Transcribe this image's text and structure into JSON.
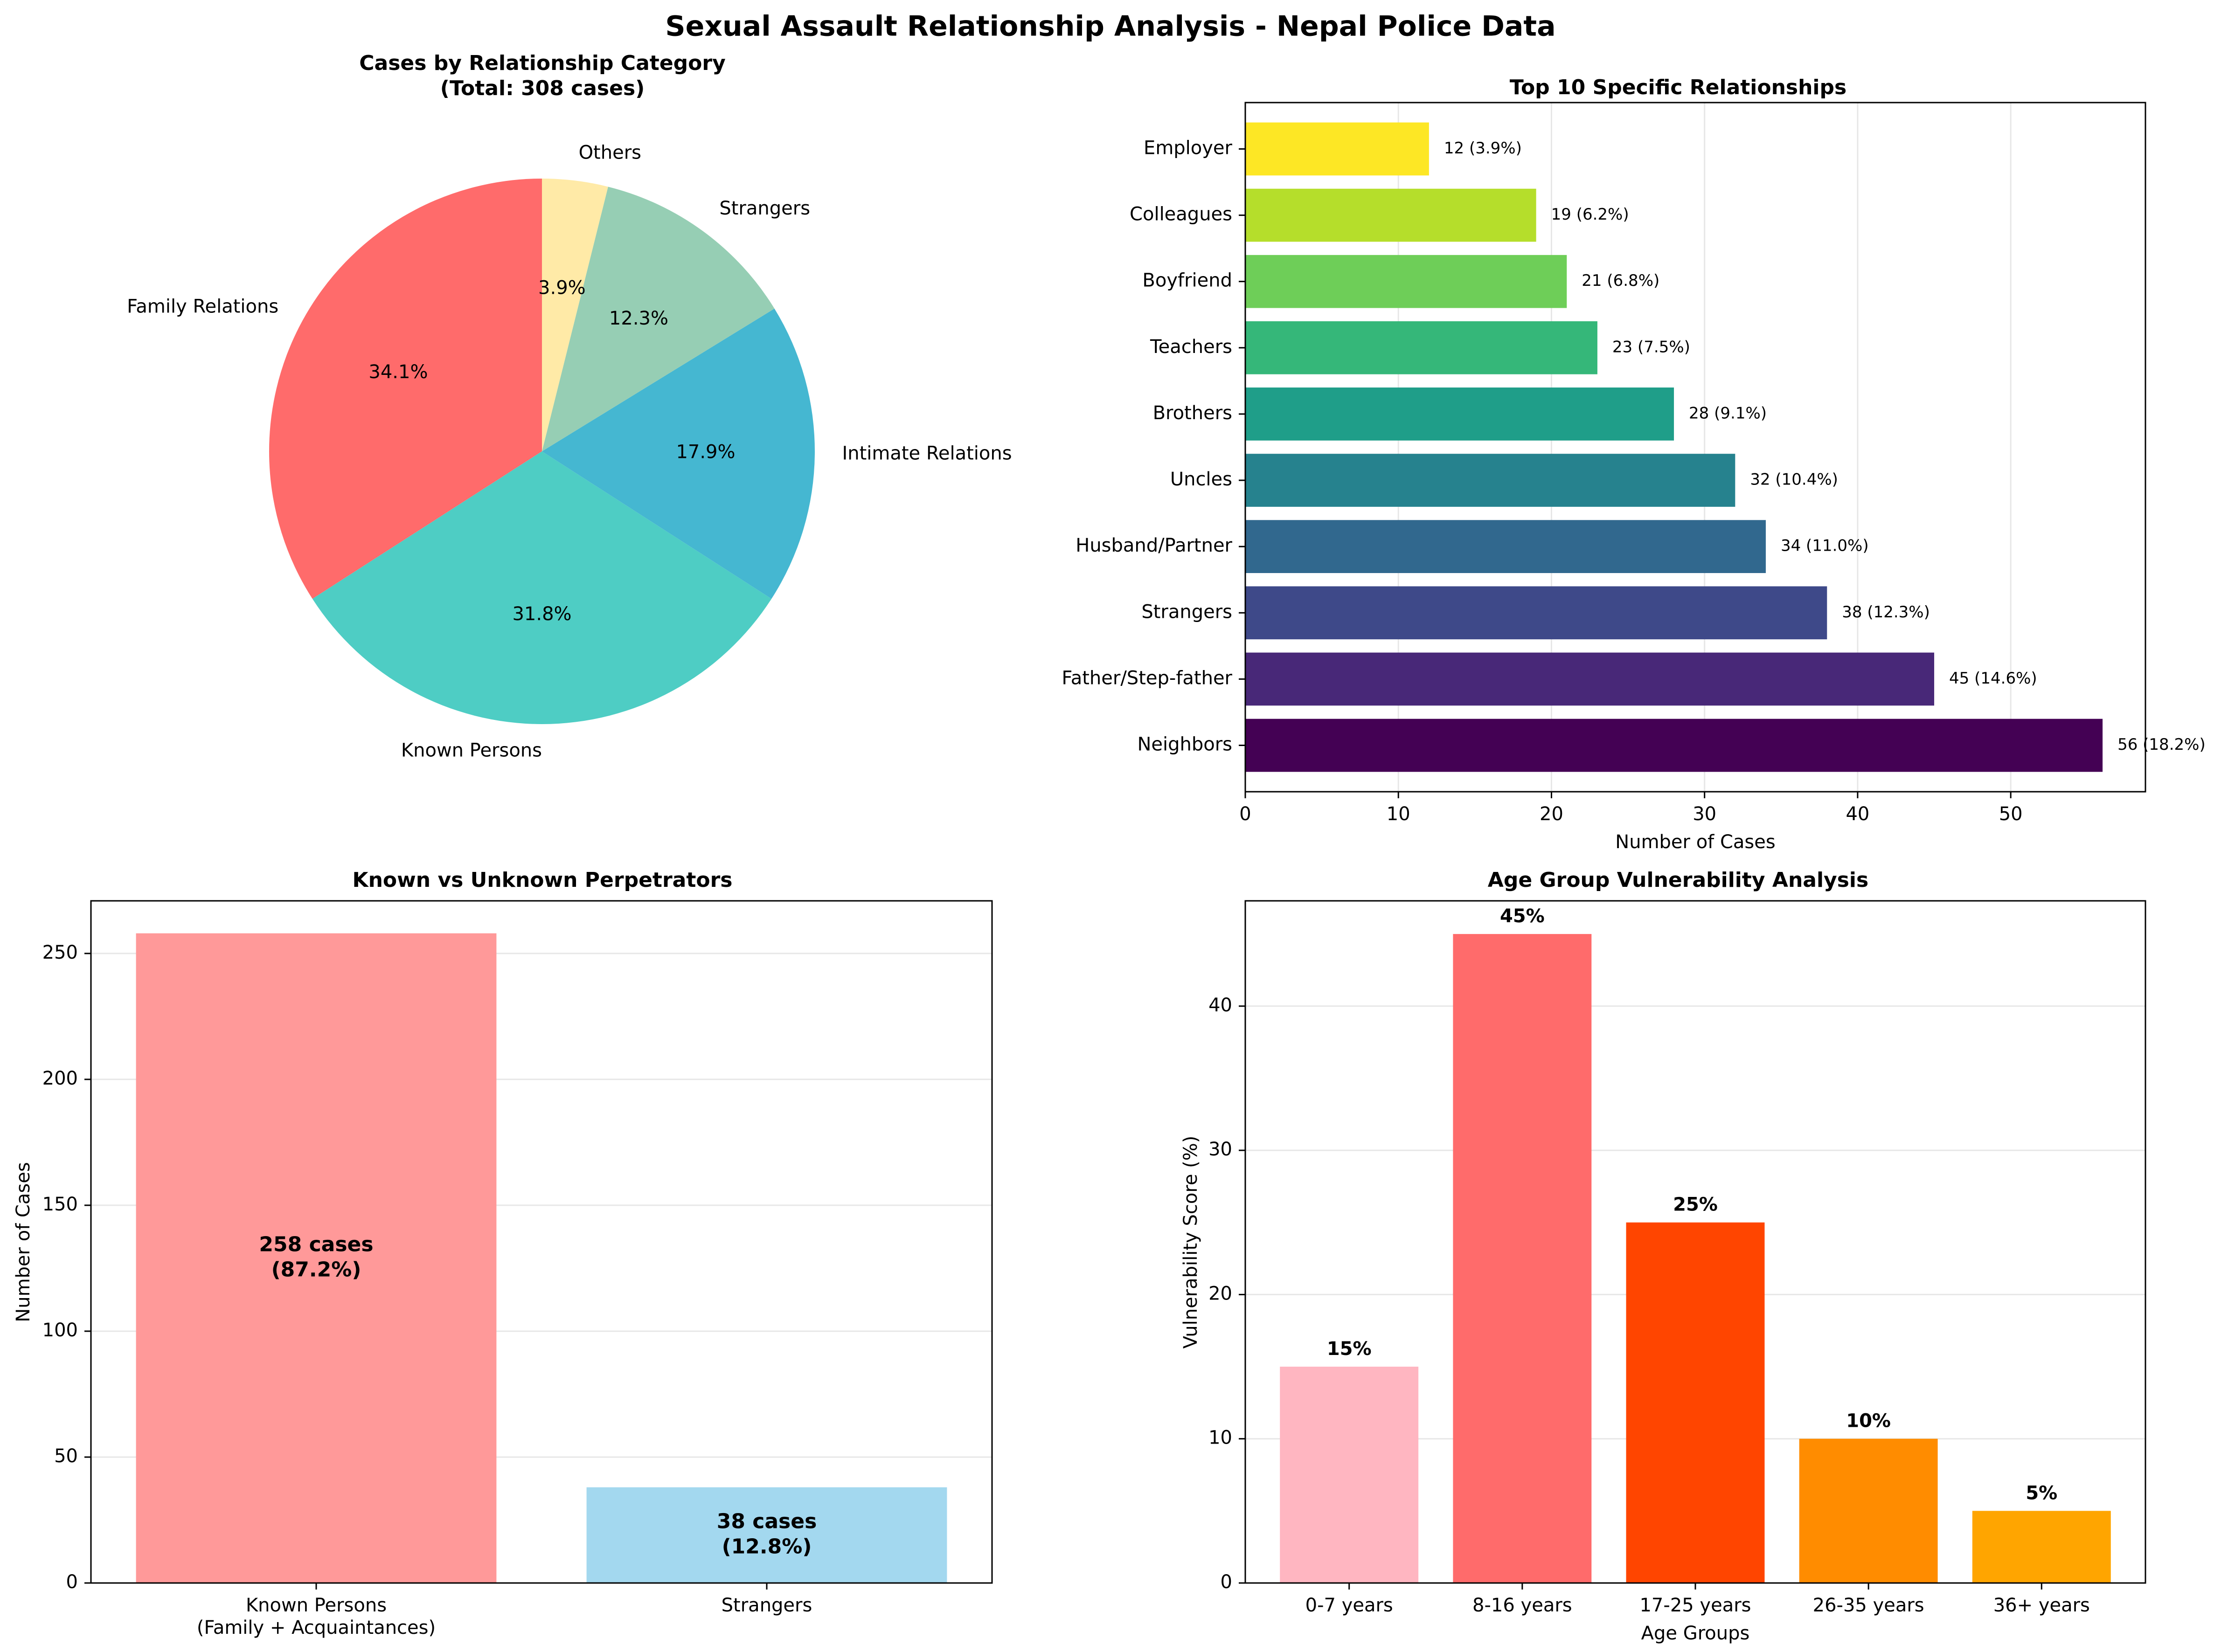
{
  "figure": {
    "suptitle": "Sexual Assault Relationship Analysis - Nepal Police Data"
  },
  "chart_data": [
    {
      "type": "pie",
      "title": "Cases by Relationship Category",
      "subtitle": "(Total: 308 cases)",
      "labels": [
        "Family Relations",
        "Known Persons",
        "Intimate Relations",
        "Strangers",
        "Others"
      ],
      "values": [
        105,
        98,
        55,
        38,
        12
      ],
      "pct_labels": [
        "34.1%",
        "31.8%",
        "17.9%",
        "12.3%",
        "3.9%"
      ],
      "colors": [
        "#ff6b6b",
        "#4ecdc4",
        "#45b7d1",
        "#96ceb4",
        "#ffeaa7"
      ],
      "start_angle": 90,
      "direction": "counterclockwise"
    },
    {
      "type": "bar",
      "orientation": "horizontal",
      "title": "Top 10 Specific Relationships",
      "xlabel": "Number of Cases",
      "xlim": [
        0,
        58.8
      ],
      "xticks": [
        0,
        10,
        20,
        30,
        40,
        50
      ],
      "categories": [
        "Neighbors",
        "Father/Step-father",
        "Strangers",
        "Husband/Partner",
        "Uncles",
        "Brothers",
        "Teachers",
        "Boyfriend",
        "Colleagues",
        "Employer"
      ],
      "values": [
        56,
        45,
        38,
        34,
        32,
        28,
        23,
        21,
        19,
        12
      ],
      "data_labels": [
        "56 (18.2%)",
        "45 (14.6%)",
        "38 (12.3%)",
        "34 (11.0%)",
        "32 (10.4%)",
        "28 (9.1%)",
        "23 (7.5%)",
        "21 (6.8%)",
        "19 (6.2%)",
        "12 (3.9%)"
      ],
      "colors": [
        "#440154",
        "#482878",
        "#3e4989",
        "#31688e",
        "#26828e",
        "#1f9e89",
        "#35b779",
        "#6ece58",
        "#b5de2b",
        "#fde725"
      ],
      "grid": "x"
    },
    {
      "type": "bar",
      "title": "Known vs Unknown Perpetrators",
      "ylabel": "Number of Cases",
      "ylim": [
        0,
        270.9
      ],
      "yticks": [
        0,
        50,
        100,
        150,
        200,
        250
      ],
      "categories": [
        {
          "line1": "Known Persons",
          "line2": "(Family + Acquaintances)"
        },
        {
          "line1": "Strangers",
          "line2": ""
        }
      ],
      "values": [
        258,
        38
      ],
      "bar_labels": [
        {
          "line1": "258 cases",
          "line2": "(87.2%)"
        },
        {
          "line1": "38 cases",
          "line2": "(12.8%)"
        }
      ],
      "colors": [
        "#ff9999",
        "#a3d8ef"
      ],
      "grid": "y"
    },
    {
      "type": "bar",
      "title": "Age Group Vulnerability Analysis",
      "xlabel": "Age Groups",
      "ylabel": "Vulnerability Score (%)",
      "ylim": [
        0,
        47.3
      ],
      "yticks": [
        0,
        10,
        20,
        30,
        40
      ],
      "categories": [
        "0-7 years",
        "8-16 years",
        "17-25 years",
        "26-35 years",
        "36+ years"
      ],
      "values": [
        15,
        45,
        25,
        10,
        5
      ],
      "data_labels": [
        "15%",
        "45%",
        "25%",
        "10%",
        "5%"
      ],
      "colors": [
        "#ffb6c1",
        "#ff6b6b",
        "#ff4500",
        "#ff8c00",
        "#ffa500"
      ],
      "grid": "y"
    }
  ]
}
